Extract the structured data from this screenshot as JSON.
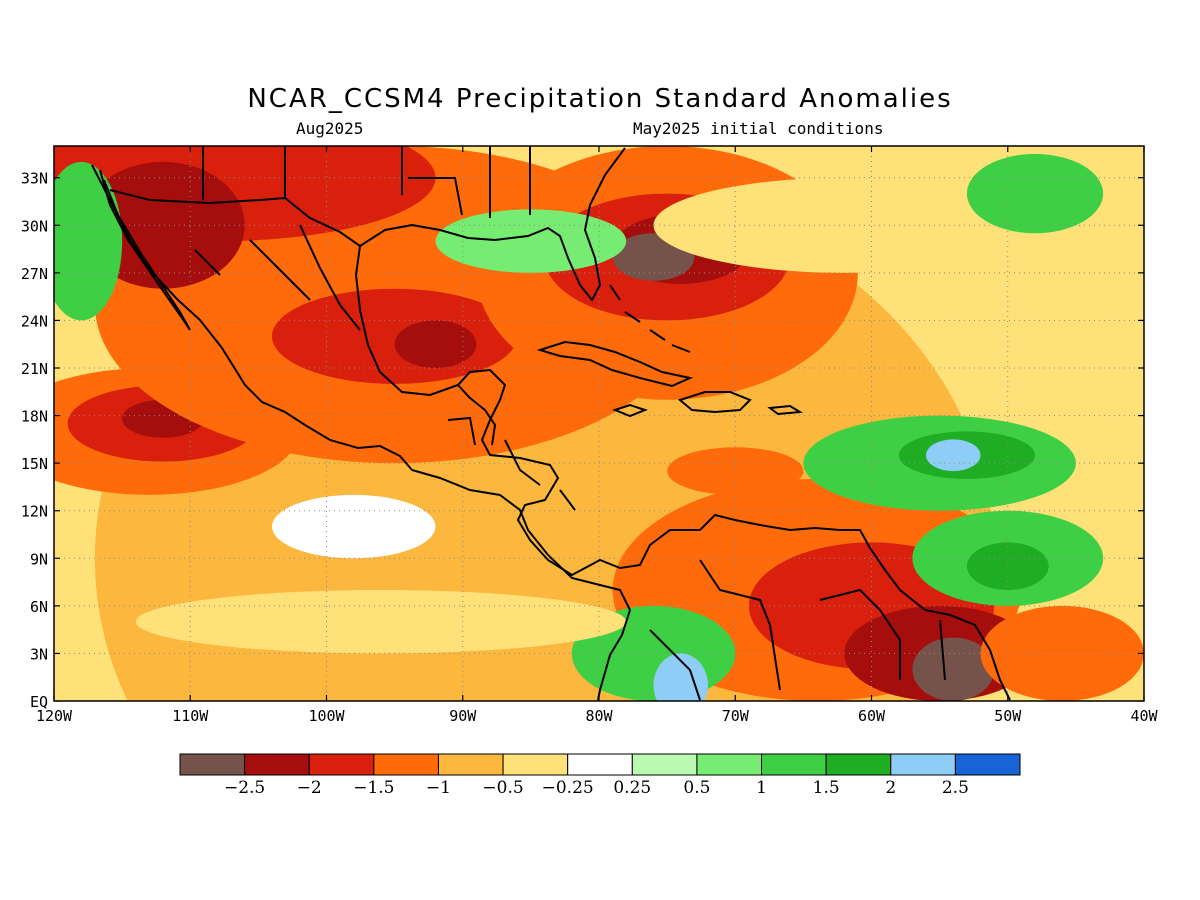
{
  "title": "NCAR_CCSM4 Precipitation Standard Anomalies",
  "subtitle_left": "Aug2025",
  "subtitle_right": "May2025 initial conditions",
  "map": {
    "lon_range": [
      -120,
      -40
    ],
    "lat_range": [
      0,
      35
    ],
    "lat_ticks": [
      {
        "value": 33,
        "label": "33N"
      },
      {
        "value": 30,
        "label": "30N"
      },
      {
        "value": 27,
        "label": "27N"
      },
      {
        "value": 24,
        "label": "24N"
      },
      {
        "value": 21,
        "label": "21N"
      },
      {
        "value": 18,
        "label": "18N"
      },
      {
        "value": 15,
        "label": "15N"
      },
      {
        "value": 12,
        "label": "12N"
      },
      {
        "value": 9,
        "label": "9N"
      },
      {
        "value": 6,
        "label": "6N"
      },
      {
        "value": 3,
        "label": "3N"
      },
      {
        "value": 0,
        "label": "EQ"
      }
    ],
    "lon_ticks": [
      {
        "value": -120,
        "label": "120W"
      },
      {
        "value": -110,
        "label": "110W"
      },
      {
        "value": -100,
        "label": "100W"
      },
      {
        "value": -90,
        "label": "90W"
      },
      {
        "value": -80,
        "label": "80W"
      },
      {
        "value": -70,
        "label": "70W"
      },
      {
        "value": -60,
        "label": "60W"
      },
      {
        "value": -50,
        "label": "50W"
      },
      {
        "value": -40,
        "label": "40W"
      }
    ],
    "gridlines": "dotted"
  },
  "colorbar": {
    "colors": [
      "#75534a",
      "#a50e0c",
      "#d8200c",
      "#ff6a0a",
      "#fcb73e",
      "#ffe17a",
      "#ffffff",
      "#b9fab0",
      "#77ec72",
      "#3fcf45",
      "#1fad23",
      "#8ecdf5",
      "#1864d6"
    ],
    "labels": [
      "−2.5",
      "−2",
      "−1.5",
      "−1",
      "−0.5",
      "−0.25",
      "0.25",
      "0.5",
      "1",
      "1.5",
      "2",
      "2.5"
    ]
  },
  "anomaly_blobs": [
    {
      "lon": -84,
      "lat": 9,
      "rx": 33,
      "ry": 24,
      "level": 4
    },
    {
      "lon": -113,
      "lat": 17,
      "rx": 11,
      "ry": 4,
      "level": 3
    },
    {
      "lon": -112,
      "lat": 17.5,
      "rx": 7,
      "ry": 2.4,
      "level": 2
    },
    {
      "lon": -112,
      "lat": 17.8,
      "rx": 3,
      "ry": 1.2,
      "level": 1
    },
    {
      "lon": -95,
      "lat": 25,
      "rx": 22,
      "ry": 10,
      "level": 3
    },
    {
      "lon": -95,
      "lat": 23,
      "rx": 9,
      "ry": 3,
      "level": 2
    },
    {
      "lon": -92,
      "lat": 22.5,
      "rx": 3,
      "ry": 1.5,
      "level": 1
    },
    {
      "lon": -108,
      "lat": 33,
      "rx": 16,
      "ry": 4,
      "level": 2
    },
    {
      "lon": -112,
      "lat": 30,
      "rx": 6,
      "ry": 4,
      "level": 1
    },
    {
      "lon": -75,
      "lat": 27,
      "rx": 14,
      "ry": 8,
      "level": 3
    },
    {
      "lon": -75,
      "lat": 28,
      "rx": 9,
      "ry": 4,
      "level": 2
    },
    {
      "lon": -74,
      "lat": 28.5,
      "rx": 5,
      "ry": 2.2,
      "level": 1
    },
    {
      "lon": -76,
      "lat": 28,
      "rx": 3,
      "ry": 1.5,
      "level": 0
    },
    {
      "lon": -64,
      "lat": 7,
      "rx": 15,
      "ry": 7,
      "level": 3
    },
    {
      "lon": -60,
      "lat": 6,
      "rx": 9,
      "ry": 4,
      "level": 2
    },
    {
      "lon": -55,
      "lat": 3,
      "rx": 7,
      "ry": 3,
      "level": 1
    },
    {
      "lon": -54,
      "lat": 2,
      "rx": 3,
      "ry": 2,
      "level": 0
    },
    {
      "lon": -46,
      "lat": 3,
      "rx": 6,
      "ry": 3,
      "level": 3
    },
    {
      "lon": -70,
      "lat": 14.5,
      "rx": 5,
      "ry": 1.5,
      "level": 3
    },
    {
      "lon": -45,
      "lat": 22,
      "rx": 9,
      "ry": 4,
      "level": 5
    },
    {
      "lon": -62,
      "lat": 30,
      "rx": 14,
      "ry": 3,
      "level": 5
    },
    {
      "lon": -55,
      "lat": 15,
      "rx": 10,
      "ry": 3,
      "level": 9
    },
    {
      "lon": -53,
      "lat": 15.5,
      "rx": 5,
      "ry": 1.5,
      "level": 10
    },
    {
      "lon": -54,
      "lat": 15.5,
      "rx": 2,
      "ry": 1,
      "level": 11
    },
    {
      "lon": -50,
      "lat": 9,
      "rx": 7,
      "ry": 3,
      "level": 9
    },
    {
      "lon": -50,
      "lat": 8.5,
      "rx": 3,
      "ry": 1.5,
      "level": 10
    },
    {
      "lon": -48,
      "lat": 32,
      "rx": 5,
      "ry": 2.5,
      "level": 9
    },
    {
      "lon": -118,
      "lat": 29,
      "rx": 3,
      "ry": 5,
      "level": 9
    },
    {
      "lon": -85,
      "lat": 29,
      "rx": 7,
      "ry": 2,
      "level": 8
    },
    {
      "lon": -76,
      "lat": 3,
      "rx": 6,
      "ry": 3,
      "level": 9
    },
    {
      "lon": -74,
      "lat": 1,
      "rx": 2,
      "ry": 2,
      "level": 11
    },
    {
      "lon": -96,
      "lat": 5,
      "rx": 18,
      "ry": 2,
      "level": 5
    },
    {
      "lon": -98,
      "lat": 11,
      "rx": 6,
      "ry": 2,
      "level": 6
    }
  ]
}
